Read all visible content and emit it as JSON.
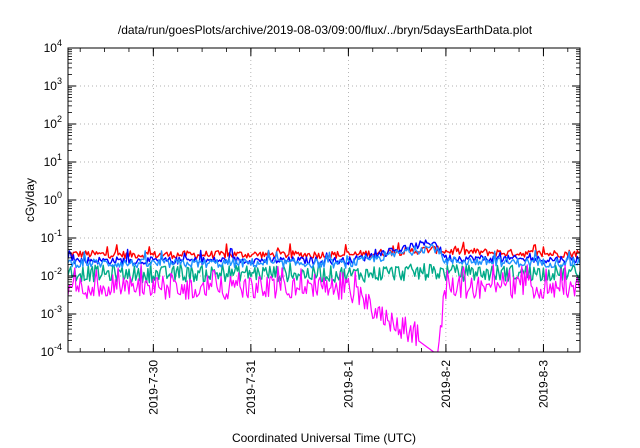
{
  "chart_data": {
    "type": "line",
    "title": "/data/run/goesPlots/archive/2019-08-03/09:00/flux/../bryn/5daysEarthData.plot",
    "xlabel": "Coordinated Universal Time (UTC)",
    "ylabel": "cGy/day",
    "yscale": "log",
    "ylim": [
      0.0001,
      10000
    ],
    "xlim": [
      "2019-07-29T03:00",
      "2019-08-03T09:00"
    ],
    "grid": true,
    "legend": "none",
    "y_ticks": [
      {
        "base": "10",
        "exp": "-4",
        "value": 0.0001
      },
      {
        "base": "10",
        "exp": "-3",
        "value": 0.001
      },
      {
        "base": "10",
        "exp": "-2",
        "value": 0.01
      },
      {
        "base": "10",
        "exp": "-1",
        "value": 0.1
      },
      {
        "base": "10",
        "exp": "0",
        "value": 1
      },
      {
        "base": "10",
        "exp": "1",
        "value": 10
      },
      {
        "base": "10",
        "exp": "2",
        "value": 100
      },
      {
        "base": "10",
        "exp": "3",
        "value": 1000
      },
      {
        "base": "10",
        "exp": "4",
        "value": 10000
      }
    ],
    "x_ticks": [
      {
        "label": "2019-7-30",
        "date": "2019-07-30T00:00"
      },
      {
        "label": "2019-7-31",
        "date": "2019-07-31T00:00"
      },
      {
        "label": "2019-8-1",
        "date": "2019-08-01T00:00"
      },
      {
        "label": "2019-8-2",
        "date": "2019-08-02T00:00"
      },
      {
        "label": "2019-8-3",
        "date": "2019-08-03T00:00"
      }
    ],
    "series": [
      {
        "color": "#ff0000",
        "base": 0.037,
        "noise": 0.1,
        "spike": 0.065,
        "x": [
          "2019-07-29T03:00",
          "2019-07-30T00:00",
          "2019-07-31T00:00",
          "2019-08-01T00:00",
          "2019-08-01T21:00",
          "2019-08-02T00:00",
          "2019-08-03T00:00",
          "2019-08-03T09:00"
        ],
        "values": [
          0.038,
          0.036,
          0.037,
          0.036,
          0.05,
          0.045,
          0.038,
          0.04
        ]
      },
      {
        "color": "#0000ff",
        "base": 0.026,
        "noise": 0.1,
        "spike": 0.045,
        "x": [
          "2019-07-29T03:00",
          "2019-07-30T00:00",
          "2019-07-31T00:00",
          "2019-08-01T00:00",
          "2019-08-01T21:00",
          "2019-08-02T00:00",
          "2019-08-03T00:00",
          "2019-08-03T09:00"
        ],
        "values": [
          0.026,
          0.025,
          0.026,
          0.025,
          0.08,
          0.03,
          0.027,
          0.028
        ]
      },
      {
        "color": "#00aa88",
        "base": 0.012,
        "noise": 0.22,
        "spike": 0.02,
        "x": [
          "2019-07-29T03:00",
          "2019-07-30T00:00",
          "2019-07-31T00:00",
          "2019-08-01T00:00",
          "2019-08-01T21:00",
          "2019-08-02T00:00",
          "2019-08-03T00:00",
          "2019-08-03T09:00"
        ],
        "values": [
          0.012,
          0.011,
          0.012,
          0.011,
          0.013,
          0.012,
          0.012,
          0.012
        ]
      },
      {
        "color": "#1e90ff",
        "base": 0.022,
        "noise": 0.12,
        "spike": 0.04,
        "x": [
          "2019-07-29T03:00",
          "2019-07-30T00:00",
          "2019-07-31T00:00",
          "2019-08-01T00:00",
          "2019-08-01T21:00",
          "2019-08-02T00:00",
          "2019-08-03T00:00",
          "2019-08-03T09:00"
        ],
        "values": [
          0.022,
          0.021,
          0.022,
          0.021,
          0.06,
          0.025,
          0.022,
          0.023
        ]
      },
      {
        "color": "#ff00ff",
        "base": 0.0045,
        "noise": 0.3,
        "spike": 0.012,
        "x": [
          "2019-07-29T03:00",
          "2019-07-30T00:00",
          "2019-07-31T00:00",
          "2019-08-01T00:00",
          "2019-08-01T21:00",
          "2019-08-01T22:00",
          "2019-08-02T00:00",
          "2019-08-03T00:00",
          "2019-08-03T09:00"
        ],
        "values": [
          0.005,
          0.0045,
          0.005,
          0.0045,
          0.0001,
          0.0001,
          0.005,
          0.005,
          0.005
        ]
      }
    ]
  }
}
